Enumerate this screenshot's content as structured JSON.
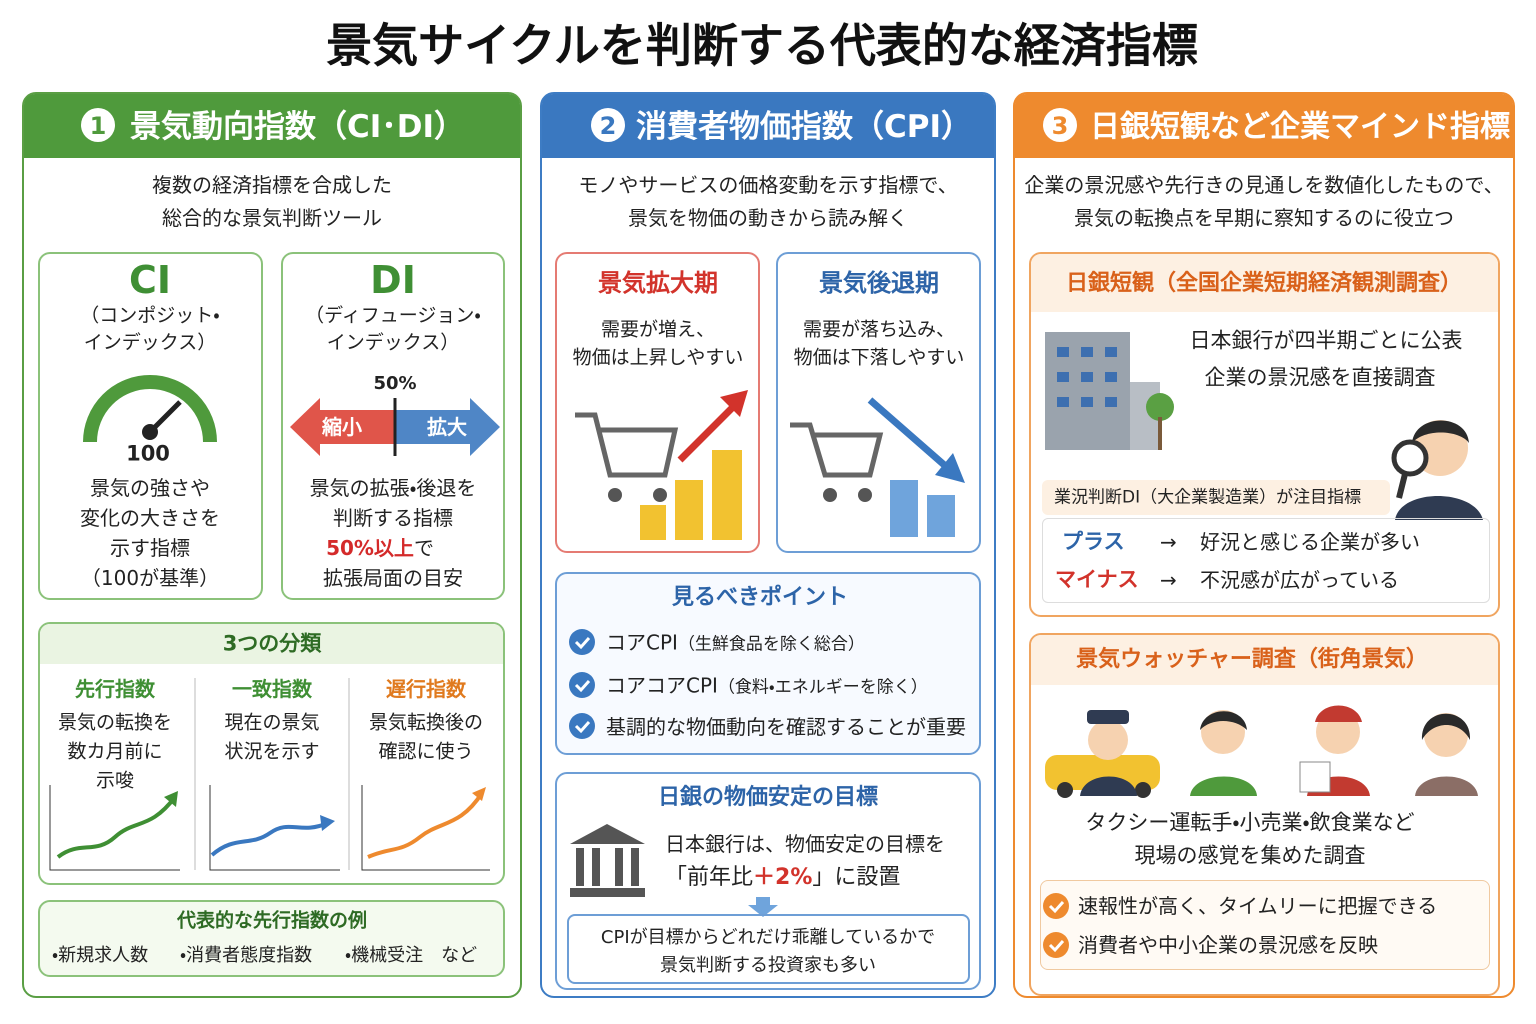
{
  "title": "景気サイクルを判断する代表的な経済指標",
  "ci_di": {
    "number": "1",
    "heading": "景気動向指数（CI･DI）",
    "lead": [
      "複数の経済指標を合成した",
      "総合的な景気判断ツール"
    ],
    "ci": {
      "name": "CI",
      "full": [
        "（コンポジット・",
        "インデックス）"
      ],
      "gauge_label": "100",
      "desc": [
        "景気の強さや",
        "変化の大きさを",
        "示す指標",
        "（100が基準）"
      ]
    },
    "di": {
      "name": "DI",
      "full": [
        "（ディフュージョン・",
        "インデックス）"
      ],
      "center_label": "50%",
      "left": "縮小",
      "right": "拡大",
      "desc": [
        "景気の拡張・後退を",
        "判断する指標"
      ],
      "highlight": "50%以上",
      "highlight_suffix": "で",
      "desc_last": "拡張局面の目安"
    },
    "classification": {
      "title": "3つの分類",
      "items": [
        {
          "name": "先行指数",
          "desc": [
            "景気の転換を",
            "数カ月前に",
            "示唆"
          ]
        },
        {
          "name": "一致指数",
          "desc": [
            "現在の景気",
            "状況を示す"
          ]
        },
        {
          "name": "遅行指数",
          "desc": [
            "景気転換後の",
            "確認に使う"
          ]
        }
      ]
    },
    "examples": {
      "title": "代表的な先行指数の例",
      "items": [
        "・新規求人数",
        "・消費者態度指数",
        "・機械受注　など"
      ]
    }
  },
  "cpi": {
    "number": "2",
    "heading": "消費者物価指数（CPI）",
    "lead": [
      "モノやサービスの価格変動を示す指標で、",
      "景気を物価の動きから読み解く"
    ],
    "phases": [
      {
        "title": "景気拡大期",
        "desc": [
          "需要が増え、",
          "物価は上昇しやすい"
        ]
      },
      {
        "title": "景気後退期",
        "desc": [
          "需要が落ち込み、",
          "物価は下落しやすい"
        ]
      }
    ],
    "points": {
      "title": "見るべきポイント",
      "items": [
        {
          "main": "コアCPI",
          "note": "（生鮮食品を除く総合）"
        },
        {
          "main": "コアコアCPI",
          "note": "（食料・エネルギーを除く）"
        },
        {
          "main": "基調的な物価動向を確認することが重要"
        }
      ]
    },
    "boj_target": {
      "title": "日銀の物価安定の目標",
      "text1": "日本銀行は、物価安定の目標を",
      "text2_pre": "「前年比",
      "text2_highlight": "＋2%",
      "text2_post": "」に設置",
      "note": [
        "CPIが目標からどれだけ乖離しているかで",
        "景気判断する投資家も多い"
      ]
    }
  },
  "tankan": {
    "number": "3",
    "heading": "日銀短観など企業マインド指標",
    "lead": [
      "企業の景況感や先行きの見通しを数値化したもので、",
      "景気の転換点を早期に察知するのに役立つ"
    ],
    "survey": {
      "title": "日銀短観（全国企業短期経済観測調査）",
      "desc": [
        "日本銀行が四半期ごとに公表",
        "企業の景況感を直接調査"
      ],
      "di_label": "業況判断DI（大企業製造業）が注目指標",
      "rows": [
        {
          "sign": "プラス",
          "arrow": "→",
          "meaning": "好況と感じる企業が多い"
        },
        {
          "sign": "マイナス",
          "arrow": "→",
          "meaning": "不況感が広がっている"
        }
      ]
    },
    "watcher": {
      "title": "景気ウォッチャー調査（街角景気）",
      "desc": [
        "タクシー運転手・小売業・飲食業など",
        "現場の感覚を集めた調査"
      ],
      "items": [
        "速報性が高く、タイムリーに把握できる",
        "消費者や中小企業の景況感を反映"
      ]
    }
  }
}
